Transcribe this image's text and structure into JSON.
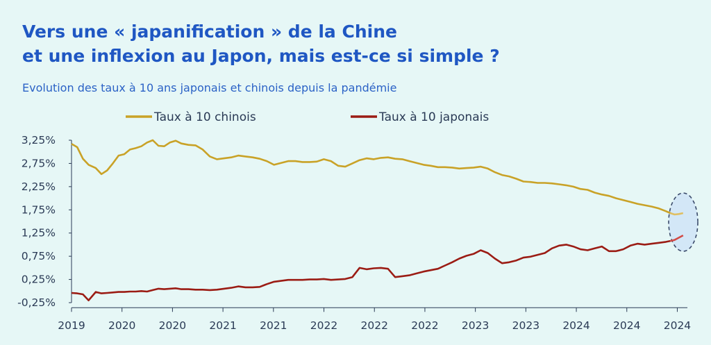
{
  "header": {
    "title_line1": "Vers une « japanification » de la Chine",
    "title_line2": "et une inflexion au Japon, mais est-ce si simple ?",
    "subtitle": "Evolution des taux à 10 ans japonais et chinois depuis la pandémie"
  },
  "colors": {
    "china": "#c9a227",
    "china_highlight": "#e0bf63",
    "japan": "#9b1c14",
    "japan_highlight": "#d24a45",
    "axis": "#2a3a55",
    "ellipse_fill": "#d3e7f7",
    "ellipse_stroke": "#3a4a6a"
  },
  "chart_data": {
    "type": "line",
    "title": "",
    "xlabel": "",
    "ylabel": "",
    "ylim": [
      -0.25,
      3.25
    ],
    "yticks": [
      "3,25%",
      "2,75%",
      "2,25%",
      "1,75%",
      "1,25%",
      "0,75%",
      "0,25%",
      "-0,25%"
    ],
    "x_tick_labels": [
      "2019",
      "2020",
      "2020",
      "2021",
      "2021",
      "2022",
      "2022",
      "2022",
      "2023",
      "2023",
      "2024",
      "2024",
      "2024"
    ],
    "x_range": [
      2019.83,
      2024.15
    ],
    "legend_position": "top-center",
    "series": [
      {
        "name": "Taux à 10 chinois",
        "x": [
          2019.83,
          2019.87,
          2019.91,
          2019.95,
          2020.0,
          2020.04,
          2020.08,
          2020.12,
          2020.16,
          2020.2,
          2020.24,
          2020.28,
          2020.32,
          2020.36,
          2020.4,
          2020.44,
          2020.48,
          2020.52,
          2020.56,
          2020.6,
          2020.65,
          2020.7,
          2020.75,
          2020.8,
          2020.85,
          2020.9,
          2020.95,
          2021.0,
          2021.05,
          2021.1,
          2021.15,
          2021.2,
          2021.25,
          2021.3,
          2021.35,
          2021.4,
          2021.45,
          2021.5,
          2021.55,
          2021.6,
          2021.65,
          2021.7,
          2021.75,
          2021.8,
          2021.85,
          2021.9,
          2021.95,
          2022.0,
          2022.05,
          2022.1,
          2022.15,
          2022.2,
          2022.25,
          2022.3,
          2022.35,
          2022.4,
          2022.45,
          2022.5,
          2022.55,
          2022.6,
          2022.65,
          2022.7,
          2022.75,
          2022.8,
          2022.85,
          2022.9,
          2022.95,
          2023.0,
          2023.05,
          2023.1,
          2023.15,
          2023.2,
          2023.25,
          2023.3,
          2023.35,
          2023.4,
          2023.45,
          2023.5,
          2023.55,
          2023.6,
          2023.65,
          2023.7,
          2023.75,
          2023.8,
          2023.85,
          2023.9,
          2023.95,
          2024.0,
          2024.03,
          2024.06,
          2024.09,
          2024.12
        ],
        "values": [
          3.17,
          3.1,
          2.85,
          2.72,
          2.65,
          2.52,
          2.6,
          2.75,
          2.92,
          2.95,
          3.05,
          3.08,
          3.12,
          3.2,
          3.25,
          3.13,
          3.12,
          3.2,
          3.24,
          3.18,
          3.15,
          3.14,
          3.05,
          2.9,
          2.84,
          2.86,
          2.88,
          2.92,
          2.9,
          2.88,
          2.85,
          2.8,
          2.72,
          2.76,
          2.8,
          2.8,
          2.78,
          2.78,
          2.79,
          2.84,
          2.8,
          2.7,
          2.68,
          2.75,
          2.82,
          2.86,
          2.84,
          2.87,
          2.88,
          2.85,
          2.84,
          2.8,
          2.76,
          2.72,
          2.7,
          2.67,
          2.67,
          2.66,
          2.64,
          2.65,
          2.66,
          2.68,
          2.64,
          2.56,
          2.5,
          2.47,
          2.42,
          2.36,
          2.35,
          2.33,
          2.33,
          2.32,
          2.3,
          2.28,
          2.25,
          2.2,
          2.18,
          2.12,
          2.08,
          2.05,
          2.0,
          1.96,
          1.92,
          1.88,
          1.85,
          1.82,
          1.78,
          1.72,
          1.68,
          1.65,
          1.66,
          1.68
        ]
      },
      {
        "name": "Taux à 10 japonais",
        "x": [
          2019.83,
          2019.87,
          2019.91,
          2019.95,
          2020.0,
          2020.04,
          2020.08,
          2020.12,
          2020.16,
          2020.2,
          2020.24,
          2020.28,
          2020.32,
          2020.36,
          2020.4,
          2020.44,
          2020.48,
          2020.52,
          2020.56,
          2020.6,
          2020.65,
          2020.7,
          2020.75,
          2020.8,
          2020.85,
          2020.9,
          2020.95,
          2021.0,
          2021.05,
          2021.1,
          2021.15,
          2021.2,
          2021.25,
          2021.3,
          2021.35,
          2021.4,
          2021.45,
          2021.5,
          2021.55,
          2021.6,
          2021.65,
          2021.7,
          2021.75,
          2021.8,
          2021.85,
          2021.9,
          2021.95,
          2022.0,
          2022.05,
          2022.1,
          2022.15,
          2022.2,
          2022.25,
          2022.3,
          2022.35,
          2022.4,
          2022.45,
          2022.5,
          2022.55,
          2022.6,
          2022.65,
          2022.7,
          2022.75,
          2022.8,
          2022.85,
          2022.9,
          2022.95,
          2023.0,
          2023.05,
          2023.1,
          2023.15,
          2023.2,
          2023.25,
          2023.3,
          2023.35,
          2023.4,
          2023.45,
          2023.5,
          2023.55,
          2023.6,
          2023.65,
          2023.7,
          2023.75,
          2023.8,
          2023.85,
          2023.9,
          2023.95,
          2024.0,
          2024.03,
          2024.06,
          2024.09,
          2024.12
        ],
        "values": [
          -0.04,
          -0.05,
          -0.07,
          -0.2,
          -0.02,
          -0.05,
          -0.04,
          -0.03,
          -0.02,
          -0.02,
          -0.01,
          -0.01,
          0.0,
          -0.01,
          0.02,
          0.05,
          0.04,
          0.05,
          0.06,
          0.04,
          0.04,
          0.03,
          0.03,
          0.02,
          0.03,
          0.05,
          0.07,
          0.1,
          0.08,
          0.08,
          0.09,
          0.15,
          0.2,
          0.22,
          0.24,
          0.24,
          0.24,
          0.25,
          0.25,
          0.26,
          0.24,
          0.25,
          0.26,
          0.3,
          0.5,
          0.47,
          0.49,
          0.5,
          0.48,
          0.3,
          0.32,
          0.34,
          0.38,
          0.42,
          0.45,
          0.48,
          0.55,
          0.62,
          0.7,
          0.76,
          0.8,
          0.88,
          0.82,
          0.7,
          0.6,
          0.62,
          0.66,
          0.72,
          0.74,
          0.78,
          0.82,
          0.92,
          0.98,
          1.0,
          0.96,
          0.9,
          0.88,
          0.92,
          0.96,
          0.86,
          0.86,
          0.9,
          0.98,
          1.02,
          1.0,
          1.02,
          1.04,
          1.06,
          1.08,
          1.1,
          1.15,
          1.2
        ]
      }
    ],
    "highlight": "ellipse around the last points of both series"
  }
}
